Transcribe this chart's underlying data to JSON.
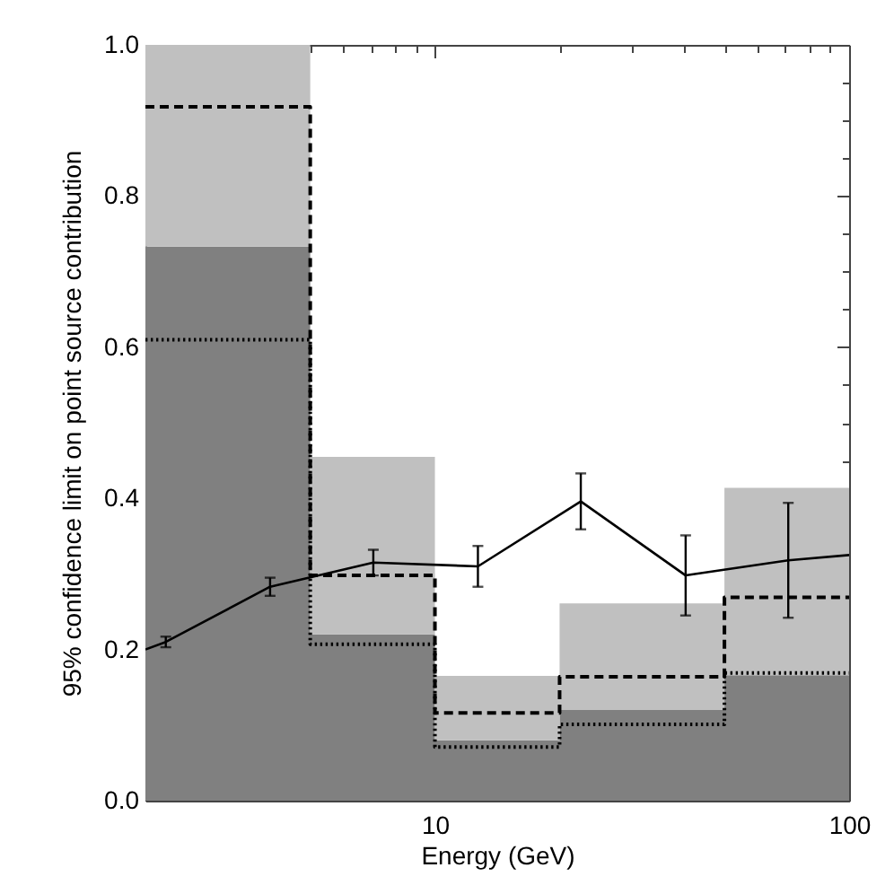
{
  "chart_data": {
    "type": "area",
    "stacked": true,
    "xlabel": "Energy (GeV)",
    "ylabel": "95% confidence limit on point source contribution",
    "log": "x",
    "xlim": [
      2,
      100
    ],
    "ylim": [
      0,
      1
    ],
    "xticks": [
      {
        "value": 2,
        "label": null
      },
      {
        "value": 3,
        "label": null
      },
      {
        "value": 4,
        "label": null
      },
      {
        "value": 5,
        "label": null
      },
      {
        "value": 6,
        "label": null
      },
      {
        "value": 7,
        "label": null
      },
      {
        "value": 8,
        "label": null
      },
      {
        "value": 9,
        "label": null
      },
      10,
      {
        "value": 20,
        "label": null
      },
      {
        "value": 30,
        "label": null
      },
      {
        "value": 40,
        "label": null
      },
      {
        "value": 50,
        "label": null
      },
      {
        "value": 60,
        "label": null
      },
      {
        "value": 70,
        "label": null
      },
      {
        "value": 80,
        "label": null
      },
      {
        "value": 90,
        "label": null
      },
      100
    ],
    "yticks": [
      {
        "value": 0,
        "label": "0.0"
      },
      {
        "value": 0.05,
        "label": null
      },
      {
        "value": 0.1,
        "label": null
      },
      {
        "value": 0.15,
        "label": null
      },
      0.2,
      {
        "value": 0.25,
        "label": null
      },
      {
        "value": 0.3,
        "label": null
      },
      {
        "value": 0.35,
        "label": null
      },
      0.4,
      {
        "value": 0.45,
        "label": null
      },
      {
        "value": 0.5,
        "label": null
      },
      {
        "value": 0.55,
        "label": null
      },
      0.6,
      {
        "value": 0.65,
        "label": null
      },
      {
        "value": 0.7,
        "label": null
      },
      {
        "value": 0.75,
        "label": null
      },
      0.8,
      {
        "value": 0.85,
        "label": null
      },
      {
        "value": 0.9,
        "label": null
      },
      {
        "value": 0.95,
        "label": null
      },
      {
        "value": 1,
        "label": "1.0"
      }
    ],
    "series": [
      {
        "color": "#808080",
        "x": [
          2,
          5,
          10,
          20,
          50,
          100
        ],
        "values": [
          0.733,
          0.22,
          0.08,
          0.12,
          0.166,
          0.166
        ]
      },
      {
        "color": "#c0c0c0",
        "x": [
          2,
          5,
          10,
          20,
          50,
          100
        ],
        "values": [
          0.267,
          0.235,
          0.085,
          0.141,
          0.248,
          0.248
        ]
      },
      {
        "type": "step",
        "color": "#000000",
        "line_style": "dashed",
        "x": [
          2,
          5,
          10,
          20,
          50,
          100
        ],
        "values": [
          0.918,
          0.298,
          0.116,
          0.164,
          0.269,
          0.269
        ]
      },
      {
        "type": "step",
        "color": "#000000",
        "line_style": "dotted",
        "x": [
          2,
          5,
          10,
          20,
          50,
          100
        ],
        "values": [
          0.61,
          0.207,
          0.071,
          0.101,
          0.169,
          0.169
        ]
      },
      {
        "type": "line",
        "color": "#000000",
        "x": [
          2,
          2.24,
          4.0,
          7.1,
          12.7,
          22.5,
          40.3,
          71.3,
          100
        ],
        "values": [
          0.2,
          0.21,
          0.283,
          0.315,
          0.31,
          0.396,
          0.298,
          0.318,
          0.325
        ],
        "errors": [
          null,
          0.007,
          0.012,
          0.017,
          0.027,
          0.037,
          0.053,
          0.076,
          null
        ]
      }
    ]
  }
}
